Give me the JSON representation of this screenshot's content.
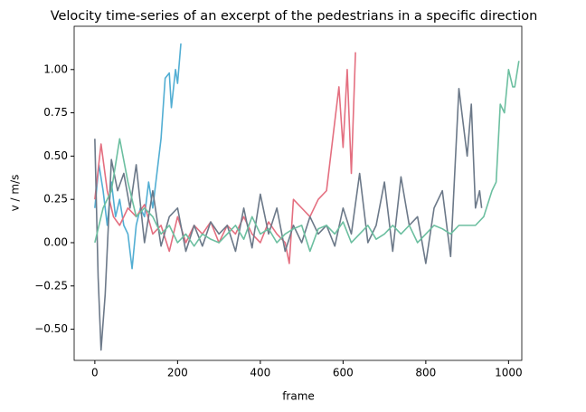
{
  "chart_data": {
    "type": "line",
    "title": "Velocity time-series of an excerpt of the pedestrians in a specific direction",
    "xlabel": "frame",
    "ylabel": "v / m/s",
    "xlim": [
      -50,
      1032
    ],
    "ylim": [
      -0.68,
      1.25
    ],
    "xticks": [
      0,
      200,
      400,
      600,
      800,
      1000
    ],
    "yticks": [
      {
        "value": -0.5,
        "label": "−0.50"
      },
      {
        "value": -0.25,
        "label": "−0.25"
      },
      {
        "value": 0,
        "label": "0.00"
      },
      {
        "value": 0.25,
        "label": "0.25"
      },
      {
        "value": 0.5,
        "label": "0.50"
      },
      {
        "value": 0.75,
        "label": "0.75"
      },
      {
        "value": 1,
        "label": "1.00"
      }
    ],
    "grid": false,
    "series": [
      {
        "color": "#52aed3",
        "x": [
          0,
          10,
          20,
          30,
          40,
          50,
          60,
          70,
          80,
          90,
          100,
          110,
          120,
          130,
          140,
          150,
          160,
          170,
          180,
          185,
          195,
          200,
          208
        ],
        "values": [
          0.2,
          0.45,
          0.3,
          0.1,
          0.35,
          0.15,
          0.25,
          0.1,
          0.05,
          -0.15,
          0.1,
          0.2,
          0.15,
          0.35,
          0.2,
          0.4,
          0.6,
          0.95,
          0.98,
          0.78,
          1.0,
          0.92,
          1.15
        ]
      },
      {
        "color": "#e46f80",
        "x": [
          0,
          15,
          30,
          45,
          60,
          80,
          100,
          120,
          140,
          160,
          180,
          200,
          220,
          240,
          260,
          280,
          300,
          320,
          340,
          360,
          380,
          400,
          420,
          440,
          460,
          470,
          480,
          500,
          520,
          540,
          560,
          575,
          590,
          600,
          610,
          620,
          630
        ],
        "values": [
          0.25,
          0.57,
          0.3,
          0.15,
          0.1,
          0.2,
          0.15,
          0.22,
          0.05,
          0.1,
          -0.05,
          0.15,
          0,
          0.1,
          0.05,
          0.12,
          0,
          0.1,
          0.05,
          0.15,
          0.05,
          0,
          0.12,
          0.05,
          0,
          -0.12,
          0.25,
          0.2,
          0.15,
          0.25,
          0.3,
          0.6,
          0.9,
          0.55,
          1.0,
          0.4,
          1.1
        ]
      },
      {
        "color": "#6c7989",
        "x": [
          0,
          8,
          15,
          25,
          40,
          55,
          70,
          85,
          100,
          120,
          140,
          160,
          180,
          200,
          220,
          240,
          260,
          280,
          300,
          320,
          340,
          360,
          380,
          400,
          420,
          440,
          460,
          480,
          500,
          520,
          540,
          560,
          580,
          600,
          620,
          640,
          660,
          680,
          700,
          720,
          740,
          760,
          780,
          800,
          820,
          840,
          860,
          880,
          900,
          910,
          920,
          930,
          935
        ],
        "values": [
          0.6,
          -0.2,
          -0.62,
          -0.3,
          0.48,
          0.3,
          0.4,
          0.2,
          0.45,
          0,
          0.3,
          -0.02,
          0.15,
          0.2,
          -0.05,
          0.1,
          -0.02,
          0.12,
          0.05,
          0.1,
          -0.05,
          0.2,
          -0.03,
          0.28,
          0.05,
          0.2,
          -0.05,
          0.1,
          0,
          0.15,
          0.05,
          0.1,
          -0.02,
          0.2,
          0.05,
          0.4,
          0,
          0.1,
          0.35,
          -0.05,
          0.38,
          0.1,
          0.15,
          -0.12,
          0.2,
          0.3,
          -0.08,
          0.89,
          0.5,
          0.8,
          0.2,
          0.3,
          0.2
        ]
      },
      {
        "color": "#6cbfa0",
        "x": [
          0,
          20,
          40,
          60,
          80,
          100,
          120,
          140,
          160,
          180,
          200,
          220,
          240,
          260,
          280,
          300,
          320,
          340,
          360,
          380,
          400,
          420,
          440,
          460,
          480,
          500,
          520,
          540,
          560,
          580,
          600,
          620,
          640,
          660,
          680,
          700,
          720,
          740,
          760,
          780,
          800,
          820,
          840,
          860,
          880,
          900,
          920,
          940,
          960,
          970,
          980,
          990,
          1000,
          1010,
          1015,
          1025
        ],
        "values": [
          0,
          0.2,
          0.3,
          0.6,
          0.35,
          0.15,
          0.2,
          0.15,
          0.05,
          0.1,
          0,
          0.05,
          -0.02,
          0.05,
          0.02,
          0,
          0.05,
          0.1,
          0.02,
          0.15,
          0.05,
          0.08,
          0,
          0.05,
          0.08,
          0.1,
          -0.05,
          0.08,
          0.1,
          0.05,
          0.12,
          0,
          0.05,
          0.1,
          0.02,
          0.05,
          0.1,
          0.05,
          0.1,
          0,
          0.05,
          0.1,
          0.08,
          0.05,
          0.1,
          0.1,
          0.1,
          0.15,
          0.3,
          0.35,
          0.8,
          0.75,
          1.0,
          0.9,
          0.9,
          1.05
        ]
      }
    ]
  }
}
